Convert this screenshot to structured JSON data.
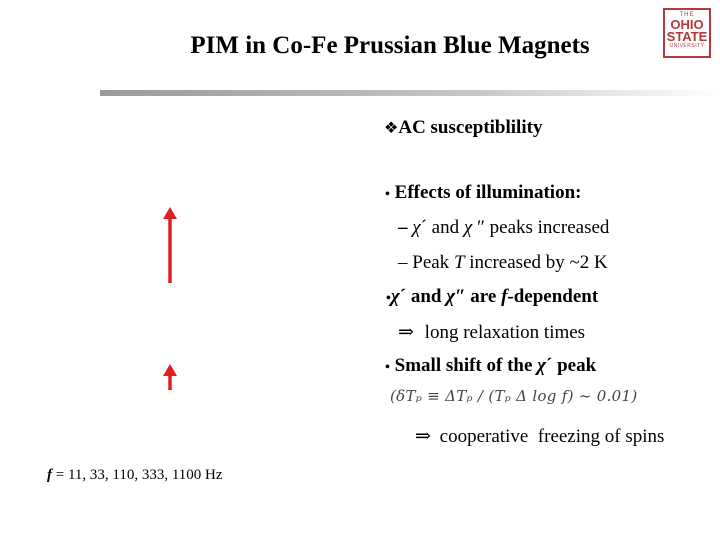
{
  "title": "PIM in Co-Fe Prussian Blue Magnets",
  "logo": {
    "line1": "THE",
    "line2": "OHIO",
    "line3": "STATE",
    "line4": "UNIVERSITY"
  },
  "section": {
    "bullet_glyph": "❖",
    "heading": "AC susceptiblility"
  },
  "bullets": [
    {
      "marker": "•",
      "text": "Effects of illumination:"
    },
    {
      "marker": "–",
      "parts": [
        "χ",
        "´ and ",
        "χ",
        " ″ peaks increased"
      ]
    },
    {
      "marker": "–",
      "parts": [
        "Peak ",
        "T",
        " increased by ~2 K"
      ]
    },
    {
      "marker": "•",
      "parts": [
        "χ",
        "´ and ",
        "χ",
        "″ are ",
        "f",
        "-dependent"
      ]
    },
    {
      "marker": "⇒",
      "text": "long relaxation times"
    },
    {
      "marker": "•",
      "parts": [
        "Small shift of the ",
        "χ",
        "´ peak"
      ]
    },
    {
      "formula": "(δTₚ ≡ ΔTₚ / (Tₚ Δ log f) ~ 0.01)"
    },
    {
      "marker": "⇒",
      "text": "cooperative  freezing of spins"
    }
  ],
  "frequency_label": {
    "symbol": "f",
    "text": " = 11, 33, 110, 333, 1100 Hz"
  },
  "colors": {
    "arrow": "#e02020",
    "rule": "#9a9a9a",
    "logo": "#b23a3a"
  },
  "icons": [
    "arrow-up-icon",
    "arrow-up-icon",
    "fleuron-bullet-icon",
    "ohio-state-logo"
  ]
}
